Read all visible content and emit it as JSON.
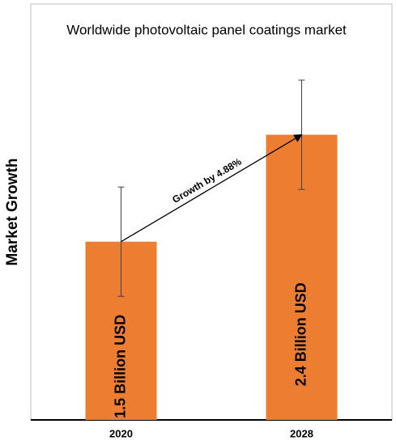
{
  "chart_data": {
    "type": "bar",
    "title": "Worldwide photovoltaic panel coatings market",
    "y_label": "Market Growth",
    "categories": [
      "2020",
      "2028"
    ],
    "values": [
      1.5,
      2.4
    ],
    "value_labels": [
      "1.5 Billion USD",
      "2.4 Billion USD"
    ],
    "errors": [
      0.46,
      0.46
    ],
    "annotation": "Growth by 4.88%",
    "color": "#ed7d31",
    "ylim": [
      0,
      3.5
    ]
  }
}
